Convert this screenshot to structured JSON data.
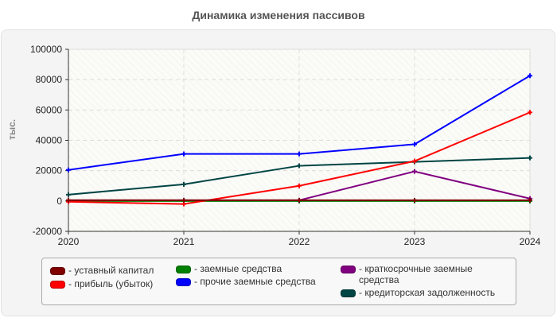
{
  "title": "Динамика изменения пассивов",
  "chart_data": {
    "type": "line",
    "title": "Динамика изменения пассивов",
    "xlabel": "",
    "ylabel": "тыс.",
    "ylim": [
      -20000,
      100000
    ],
    "yticks": [
      -20000,
      0,
      20000,
      40000,
      60000,
      80000,
      100000
    ],
    "grid": true,
    "legend_position": "bottom",
    "x": [
      "2020",
      "2021",
      "2022",
      "2023",
      "2024"
    ],
    "series": [
      {
        "name": "уставный капитал",
        "color": "#800000",
        "values": [
          500,
          500,
          500,
          500,
          500
        ]
      },
      {
        "name": "прибыль (убыток)",
        "color": "#ff0000",
        "values": [
          -500,
          -2000,
          10000,
          26300,
          58400
        ]
      },
      {
        "name": "заемные средства",
        "color": "#008000",
        "values": [
          0,
          0,
          0,
          0,
          0
        ]
      },
      {
        "name": "прочие заемные средства",
        "color": "#0000ff",
        "values": [
          20500,
          31000,
          31000,
          37400,
          82600
        ]
      },
      {
        "name": "краткосрочные заемные средства",
        "color": "#800080",
        "values": [
          500,
          500,
          500,
          19500,
          1600
        ]
      },
      {
        "name": "кредиторская задолженность",
        "color": "#004444",
        "values": [
          4200,
          11000,
          23200,
          25800,
          28400
        ]
      }
    ]
  },
  "legend": [
    {
      "label": "- уставный капитал",
      "color": "#800000"
    },
    {
      "label": "- прибыль (убыток)",
      "color": "#ff0000"
    },
    {
      "label": "- заемные средства",
      "color": "#008000"
    },
    {
      "label": "- прочие заемные средства",
      "color": "#0000ff"
    },
    {
      "label": "- краткосрочные заемные\nсредства",
      "color": "#800080"
    },
    {
      "label": "- кредиторская задолженность",
      "color": "#004444"
    }
  ]
}
